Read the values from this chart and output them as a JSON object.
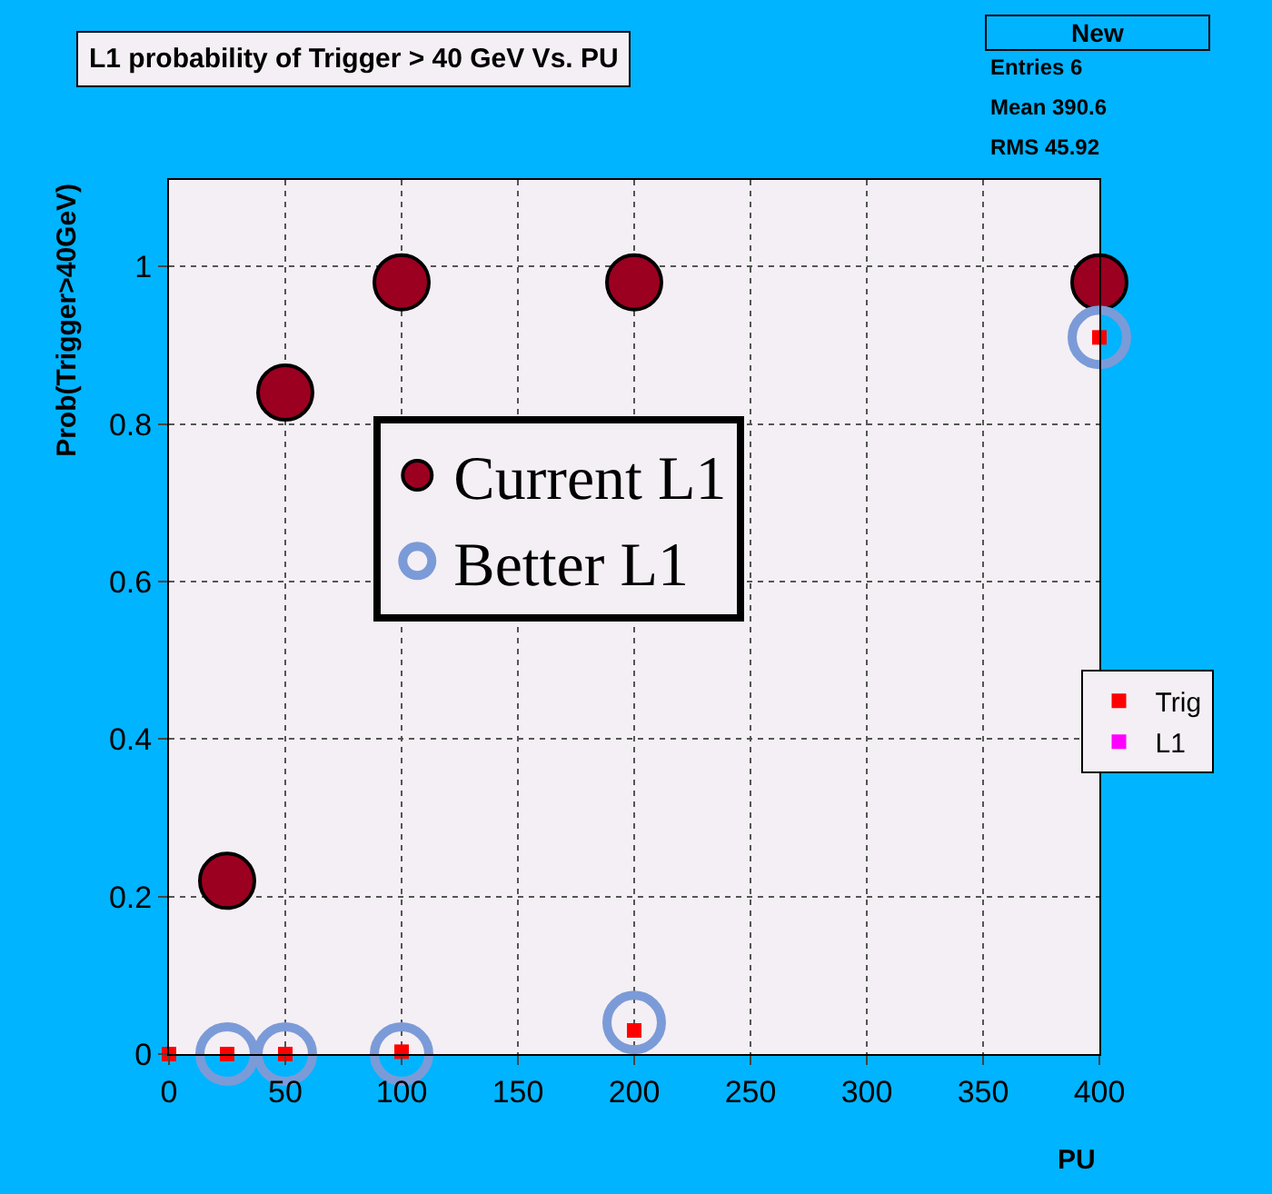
{
  "chart_data": {
    "type": "scatter",
    "title": "L1 probability of Trigger > 40 GeV Vs. PU",
    "xlabel": "PU",
    "ylabel": "Prob(Trigger>40GeV)",
    "xlim": [
      0,
      400
    ],
    "xticks": [
      0,
      50,
      100,
      150,
      200,
      250,
      300,
      350,
      400
    ],
    "ylim": [
      0,
      1.11
    ],
    "yticks": [
      0,
      0.2,
      0.4,
      0.6,
      0.8,
      1
    ],
    "grid": true,
    "legend": "right",
    "series": [
      {
        "name": "Current L1",
        "color": "#9b0020",
        "marker": "circle",
        "x": [
          25,
          50,
          100,
          200,
          400
        ],
        "values": [
          0.22,
          0.84,
          0.98,
          0.98,
          0.98
        ]
      },
      {
        "name": "Better L1",
        "color": "#7b9bd8",
        "marker": "circle-open",
        "x": [
          25,
          50,
          100,
          200,
          400
        ],
        "values": [
          0,
          0,
          0,
          0.04,
          0.91
        ]
      },
      {
        "name": "Trig",
        "color": "#ff0000",
        "marker": "square",
        "x": [
          0,
          25,
          50,
          100,
          200,
          400
        ],
        "values": [
          0,
          0,
          0,
          0.003,
          0.03,
          0.91
        ]
      },
      {
        "name": "L1",
        "color": "#ff00ff",
        "marker": "square"
      }
    ],
    "annotations": [
      "New",
      "Entries 6",
      "Mean 390.6",
      "RMS 45.92"
    ]
  }
}
